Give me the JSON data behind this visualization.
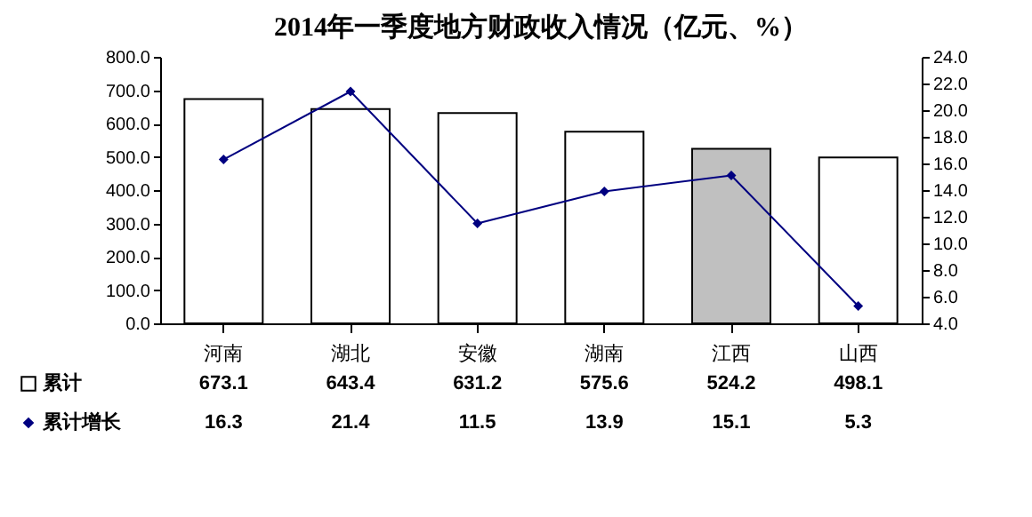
{
  "chart_data": {
    "type": "bar",
    "title": "2014年一季度地方财政收入情况（亿元、%）",
    "categories": [
      "河南",
      "湖北",
      "安徽",
      "湖南",
      "江西",
      "山西"
    ],
    "series": [
      {
        "name": "累计",
        "colors": [
          "#ffffff",
          "#ffffff",
          "#ffffff",
          "#ffffff",
          "#c0c0c0",
          "#ffffff"
        ],
        "values": [
          673.1,
          643.4,
          631.2,
          575.6,
          524.2,
          498.1
        ]
      },
      {
        "name": "累计增长",
        "type": "line",
        "axis": "y2",
        "color": "#000080",
        "marker": "diamond",
        "values": [
          16.3,
          21.4,
          11.5,
          13.9,
          15.1,
          5.3
        ]
      }
    ],
    "data_labels": true,
    "ylim": [
      0,
      800
    ],
    "yticks": [
      {
        "value": 0,
        "label": "0.0"
      },
      {
        "value": 100,
        "label": "100.0"
      },
      {
        "value": 200,
        "label": "200.0"
      },
      {
        "value": 300,
        "label": "300.0"
      },
      {
        "value": 400,
        "label": "400.0"
      },
      {
        "value": 500,
        "label": "500.0"
      },
      {
        "value": 600,
        "label": "600.0"
      },
      {
        "value": 700,
        "label": "700.0"
      },
      {
        "value": 800,
        "label": "800.0"
      }
    ],
    "y2lim": [
      4,
      24
    ],
    "y2ticks": [
      {
        "value": 4,
        "label": "4.0"
      },
      {
        "value": 6,
        "label": "6.0"
      },
      {
        "value": 8,
        "label": "8.0"
      },
      {
        "value": 10,
        "label": "10.0"
      },
      {
        "value": 12,
        "label": "12.0"
      },
      {
        "value": 14,
        "label": "14.0"
      },
      {
        "value": 16,
        "label": "16.0"
      },
      {
        "value": 18,
        "label": "18.0"
      },
      {
        "value": 20,
        "label": "20.0"
      },
      {
        "value": 22,
        "label": "22.0"
      },
      {
        "value": 24,
        "label": "24.0"
      }
    ],
    "grid": false,
    "legend": "bottom left"
  }
}
